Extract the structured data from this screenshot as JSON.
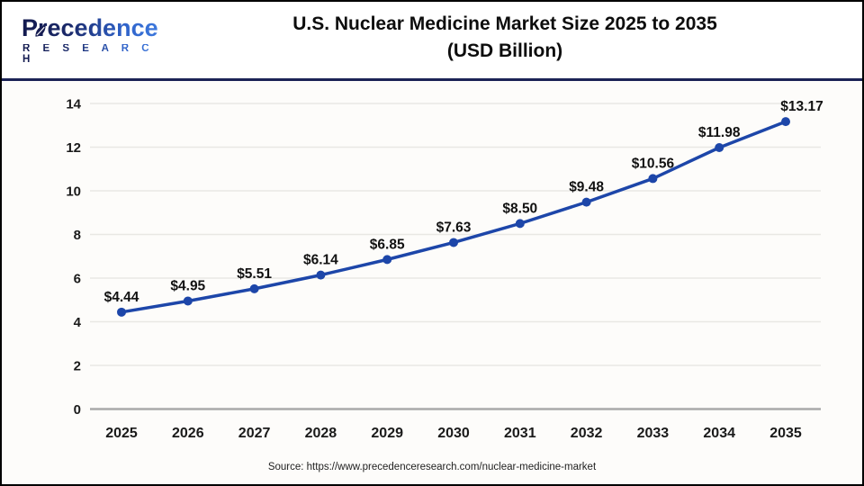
{
  "header": {
    "logo": {
      "name": "Precedence",
      "subname": "R E S E A R C H"
    },
    "title_line1": "U.S. Nuclear Medicine Market Size 2025 to 2035",
    "title_line2": "(USD Billion)"
  },
  "chart_data": {
    "type": "line",
    "title": "U.S. Nuclear Medicine Market Size 2025 to 2035 (USD Billion)",
    "categories": [
      "2025",
      "2026",
      "2027",
      "2028",
      "2029",
      "2030",
      "2031",
      "2032",
      "2033",
      "2034",
      "2035"
    ],
    "values": [
      4.44,
      4.95,
      5.51,
      6.14,
      6.85,
      7.63,
      8.5,
      9.48,
      10.56,
      11.98,
      13.17
    ],
    "labels": [
      "$4.44",
      "$4.95",
      "$5.51",
      "$6.14",
      "$6.85",
      "$7.63",
      "$8.50",
      "$9.48",
      "$10.56",
      "$11.98",
      "$13.17"
    ],
    "xlabel": "",
    "ylabel": "",
    "ylim": [
      0,
      14
    ],
    "yticks": [
      0,
      2,
      4,
      6,
      8,
      10,
      12,
      14
    ],
    "grid": true,
    "legend": "none",
    "line_color": "#1d46a9",
    "marker_color": "#1d46a9",
    "grid_color": "#e9e8e4",
    "axis_line_color": "#a9a9a9",
    "tick_label_color": "#1a1a1a",
    "data_label_color": "#111111"
  },
  "footer": {
    "source": "Source: https://www.precedenceresearch.com/nuclear-medicine-market"
  },
  "colors": {
    "accent_navy": "#1b2160",
    "accent_blue": "#3c74d9",
    "header_rule": "#1b2255",
    "frame_border": "#000000"
  }
}
